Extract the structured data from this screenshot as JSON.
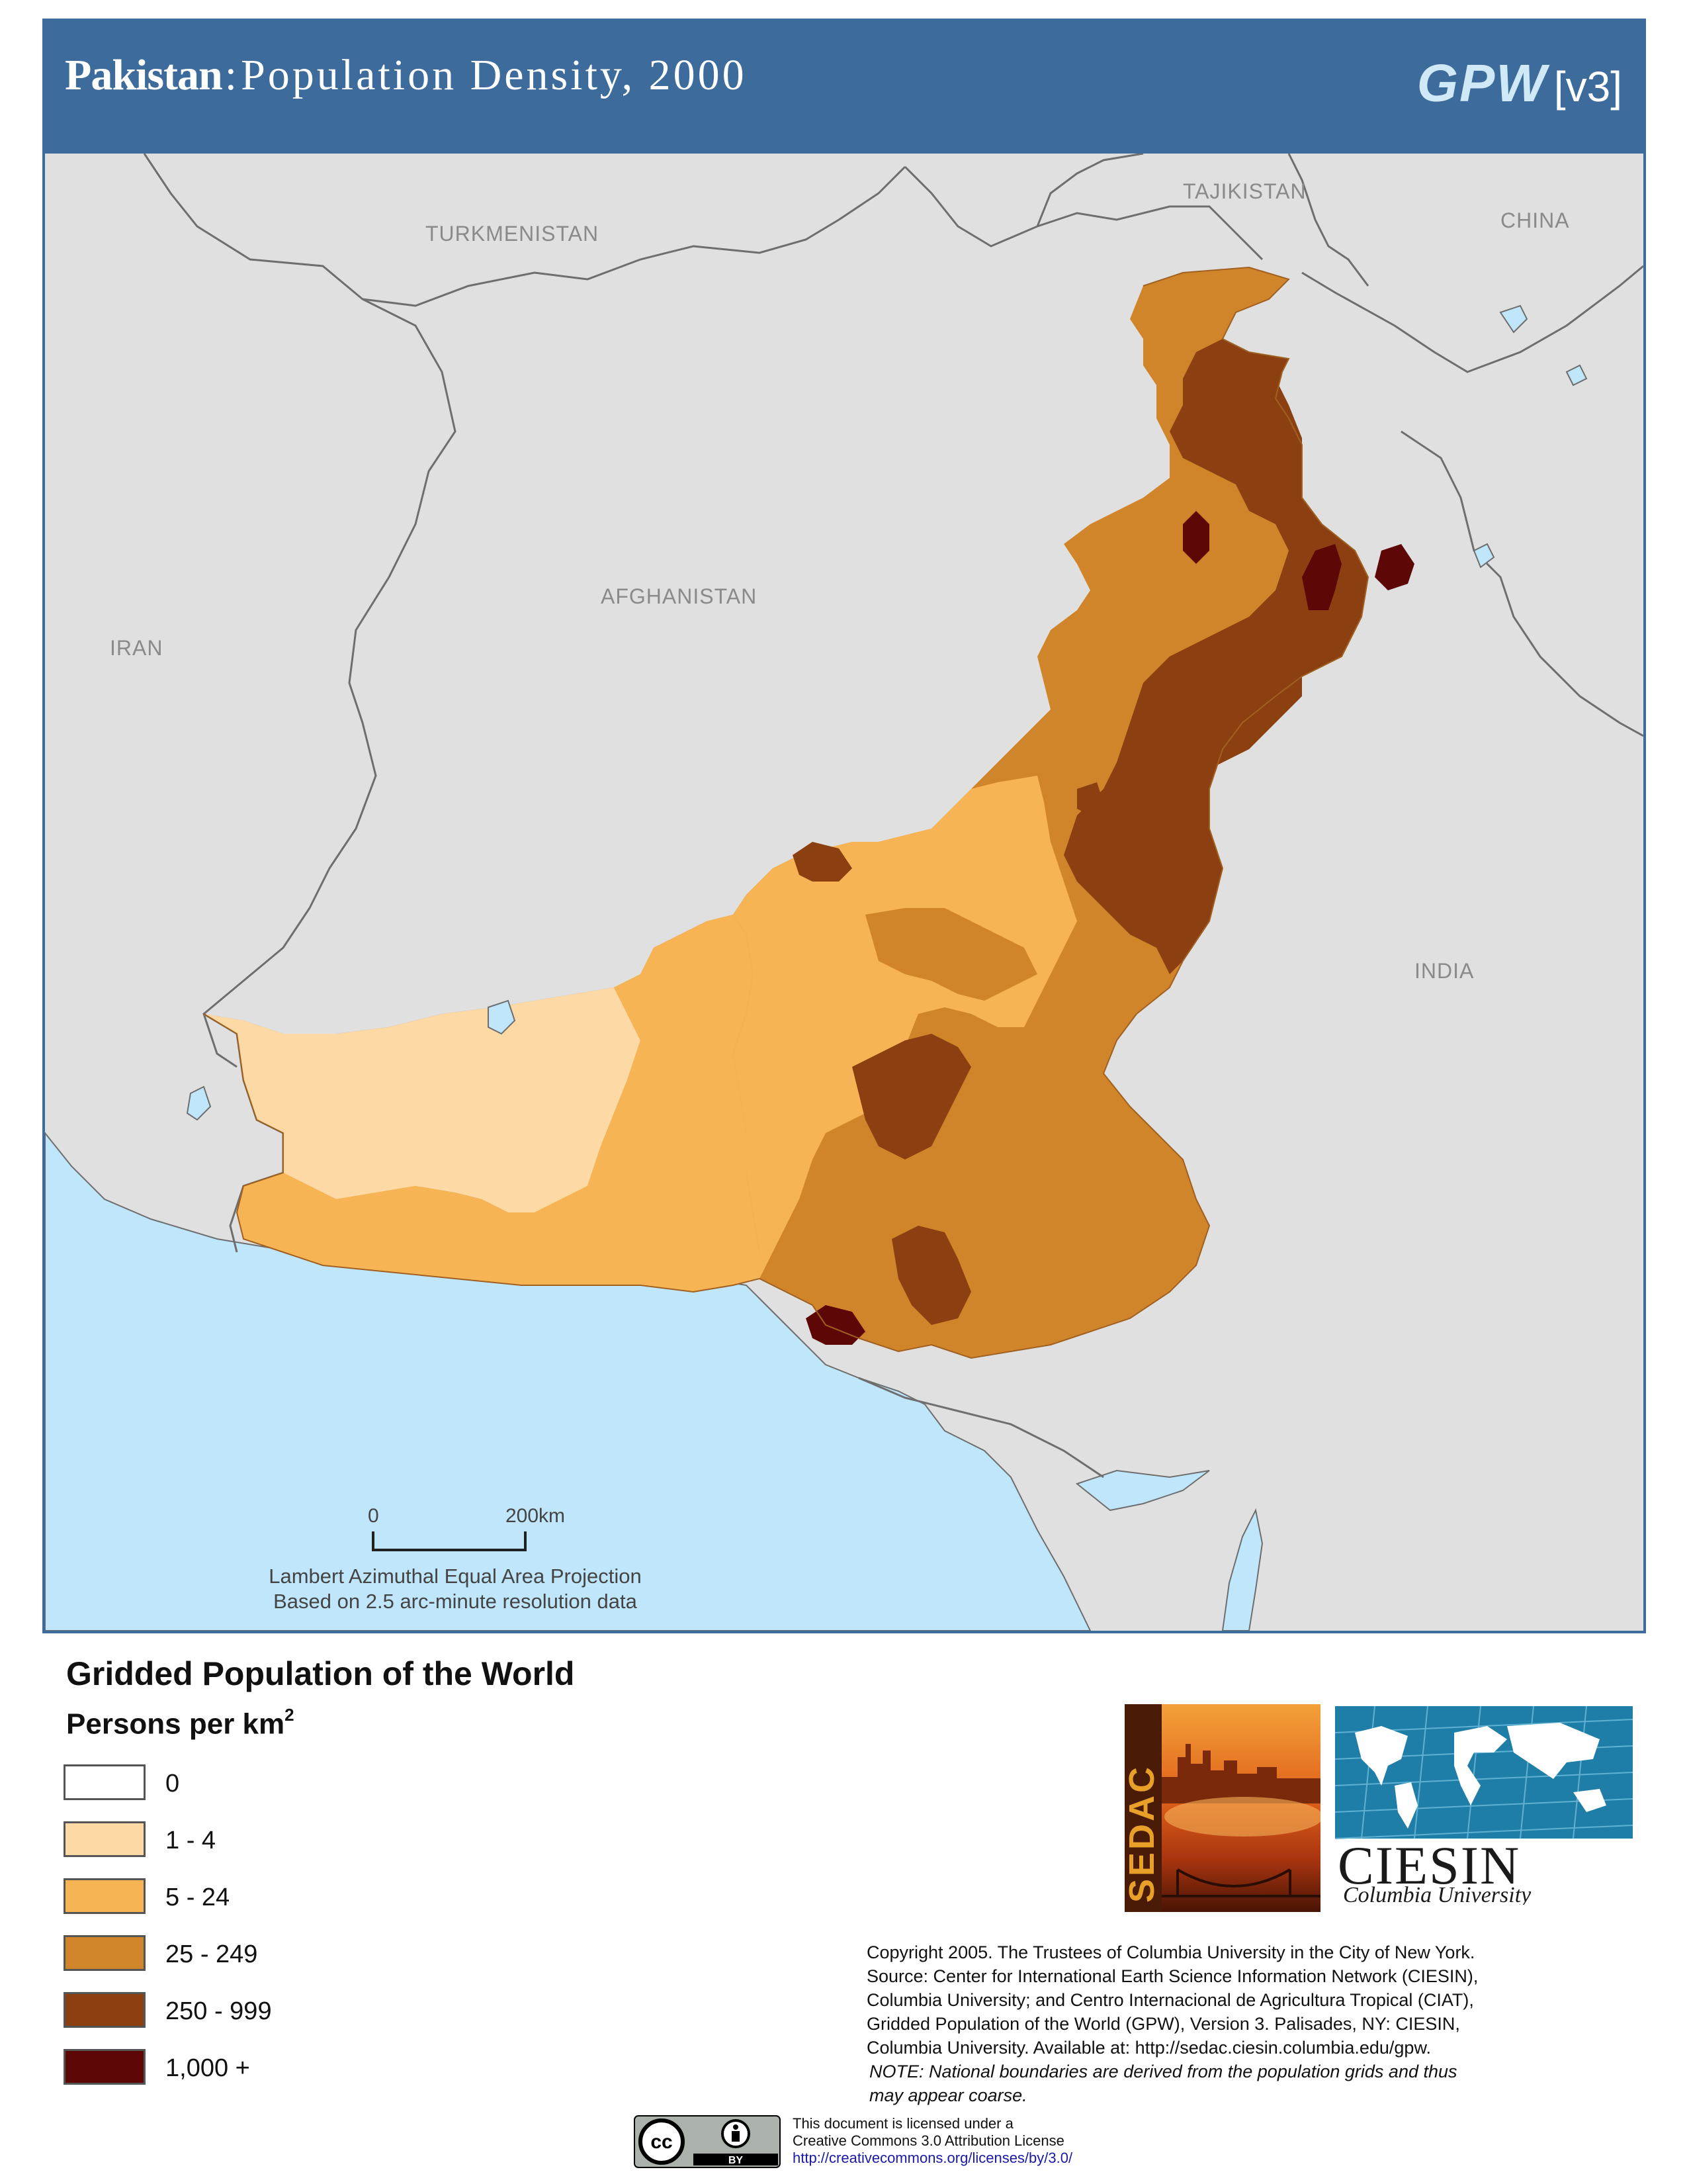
{
  "header": {
    "country": "Pakistan",
    "separator": ":",
    "subtitle": "Population Density, 2000",
    "gpw": "GPW",
    "version": "[v3]"
  },
  "map": {
    "labels": {
      "turkmenistan": "TURKMENISTAN",
      "tajikistan": "TAJIKISTAN",
      "china": "CHINA",
      "afghanistan": "AFGHANISTAN",
      "iran": "IRAN",
      "india": "INDIA"
    },
    "scale": {
      "start": "0",
      "end": "200km"
    },
    "projection_line1": "Lambert Azimuthal Equal Area Projection",
    "projection_line2": "Based on 2.5 arc-minute resolution data",
    "colors": {
      "land": "#e0e0e0",
      "water": "#bfe6fb",
      "border": "#6e6e6e"
    }
  },
  "legend": {
    "title": "Gridded Population of the World",
    "units": "Persons per km",
    "units_sup": "2",
    "items": [
      {
        "label": "0",
        "color": "#ffffff"
      },
      {
        "label": "1 - 4",
        "color": "#fdd9a6"
      },
      {
        "label": "5 - 24",
        "color": "#f6b454"
      },
      {
        "label": "25 - 249",
        "color": "#d0852a"
      },
      {
        "label": "250 - 999",
        "color": "#8c4012"
      },
      {
        "label": "1,000 +",
        "color": "#5d0707"
      }
    ]
  },
  "logos": {
    "sedac": "SEDAC",
    "ciesin": "CIESIN",
    "ciesin_sub": "Columbia University"
  },
  "credits": {
    "line1": "Copyright 2005. The Trustees of Columbia University in the City of New York.",
    "line2": "Source: Center for International Earth Science Information Network (CIESIN),",
    "line3": "Columbia University; and Centro Internacional de Agricultura Tropical (CIAT),",
    "line4": "Gridded Population of the World (GPW),  Version 3.  Palisades, NY: CIESIN,",
    "line5": "Columbia University.   Available at:    http://sedac.ciesin.columbia.edu/gpw.",
    "note1": "NOTE: National boundaries are derived from the population grids and thus",
    "note2": "may appear coarse."
  },
  "license": {
    "badge_cc": "cc",
    "badge_by": "BY",
    "line1": "This document is licensed under a",
    "line2": "Creative Commons 3.0 Attribution License",
    "url": "http://creativecommons.org/licenses/by/3.0/"
  }
}
